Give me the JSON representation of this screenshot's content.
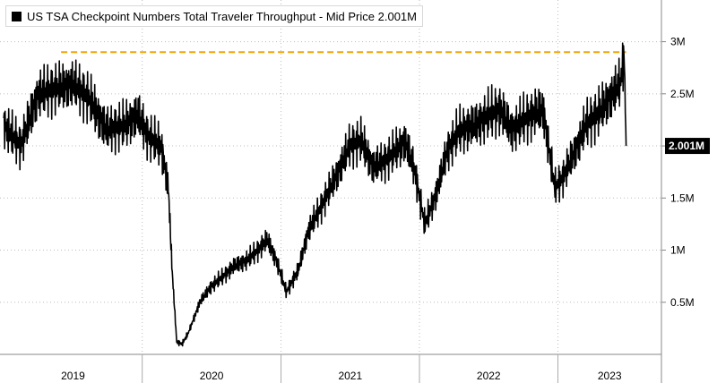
{
  "chart_data": {
    "type": "line",
    "title": "US TSA Checkpoint Numbers Total Traveler Throughput - Mid Price 2.001M",
    "series": [
      {
        "name": "US TSA Checkpoint Numbers Total Traveler Throughput",
        "color": "#000000",
        "x": [
          "2019-01-01",
          "2019-02-15",
          "2019-04-01",
          "2019-05-20",
          "2019-07-01",
          "2019-08-15",
          "2019-09-30",
          "2019-11-15",
          "2019-12-20",
          "2020-01-15",
          "2020-02-20",
          "2020-03-10",
          "2020-03-20",
          "2020-04-01",
          "2020-04-15",
          "2020-05-01",
          "2020-06-01",
          "2020-06-30",
          "2020-08-01",
          "2020-09-01",
          "2020-10-01",
          "2020-11-01",
          "2020-11-26",
          "2020-12-20",
          "2021-01-15",
          "2021-02-15",
          "2021-03-15",
          "2021-04-15",
          "2021-05-31",
          "2021-07-01",
          "2021-08-01",
          "2021-09-01",
          "2021-10-01",
          "2021-11-24",
          "2021-12-20",
          "2022-01-15",
          "2022-02-15",
          "2022-03-15",
          "2022-04-15",
          "2022-05-30",
          "2022-07-01",
          "2022-08-01",
          "2022-09-01",
          "2022-10-01",
          "2022-11-23",
          "2022-12-24",
          "2023-01-15",
          "2023-02-15",
          "2023-03-15",
          "2023-04-15",
          "2023-05-25",
          "2023-06-15",
          "2023-06-25",
          "2023-06-30"
        ],
        "values": [
          2.2,
          2.0,
          2.5,
          2.55,
          2.6,
          2.45,
          2.15,
          2.2,
          2.3,
          2.1,
          2.0,
          1.6,
          0.8,
          0.12,
          0.1,
          0.2,
          0.5,
          0.65,
          0.75,
          0.85,
          0.9,
          1.0,
          1.1,
          0.9,
          0.6,
          0.8,
          1.2,
          1.4,
          1.75,
          2.0,
          2.05,
          1.8,
          1.85,
          2.05,
          1.75,
          1.25,
          1.55,
          1.95,
          2.15,
          2.2,
          2.3,
          2.35,
          2.15,
          2.25,
          2.35,
          1.6,
          1.7,
          1.95,
          2.2,
          2.3,
          2.5,
          2.6,
          2.88,
          2.0
        ]
      }
    ],
    "reference_line": {
      "value": 2.9,
      "from": "2019-06-01",
      "to": "2023-06-30",
      "color": "#f0a500"
    },
    "last_value_label": "2.001M",
    "last_value": 2.0,
    "y_ticks": [
      {
        "value": 0.5,
        "label": "0.5M"
      },
      {
        "value": 1.0,
        "label": "1M"
      },
      {
        "value": 1.5,
        "label": "1.5M"
      },
      {
        "value": 2.0,
        "label": "2M"
      },
      {
        "value": 2.5,
        "label": "2.5M"
      },
      {
        "value": 3.0,
        "label": "3M"
      }
    ],
    "ylim": [
      0,
      3.4
    ],
    "x_labels": [
      "2019",
      "2020",
      "2021",
      "2022",
      "2023"
    ],
    "grid": true,
    "legend": "top-left"
  }
}
